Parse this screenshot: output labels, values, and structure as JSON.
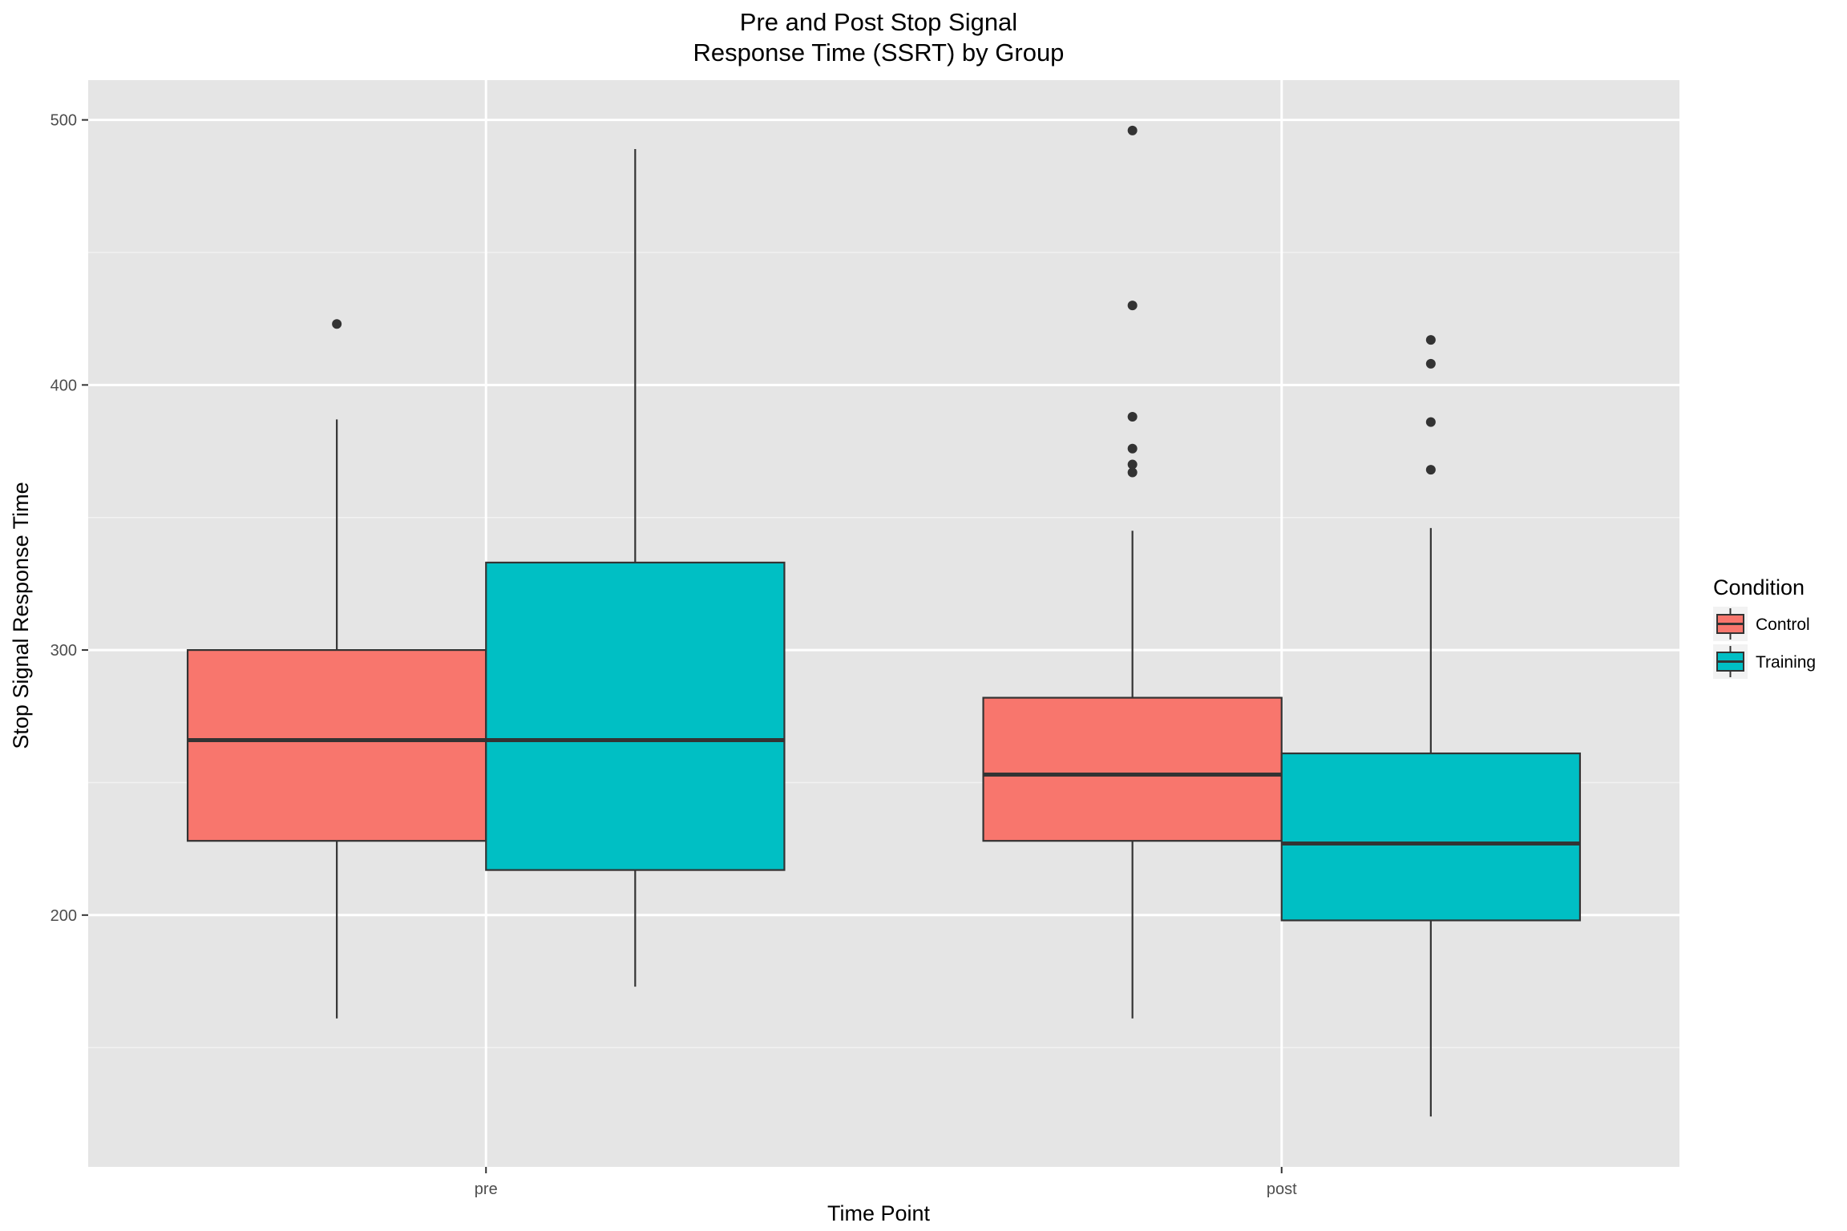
{
  "chart_data": {
    "type": "boxplot",
    "title_lines": [
      "Pre and Post Stop Signal",
      "Response Time (SSRT) by Group"
    ],
    "xlabel": "Time Point",
    "ylabel": "Stop Signal Response Time",
    "categories": [
      "pre",
      "post"
    ],
    "y_ticks": [
      200,
      300,
      400,
      500
    ],
    "ylim": [
      105,
      515
    ],
    "grid": true,
    "legend": {
      "title": "Condition",
      "position": "right",
      "entries": [
        {
          "name": "Control",
          "color": "#F8766D"
        },
        {
          "name": "Training",
          "color": "#00BFC4"
        }
      ]
    },
    "series": [
      {
        "name": "Control",
        "color": "#F8766D",
        "boxes": [
          {
            "category": "pre",
            "whisker_low": 161,
            "q1": 228,
            "median": 266,
            "q3": 300,
            "whisker_high": 387,
            "outliers": [
              423
            ]
          },
          {
            "category": "post",
            "whisker_low": 161,
            "q1": 228,
            "median": 253,
            "q3": 282,
            "whisker_high": 345,
            "outliers": [
              367,
              370,
              376,
              388,
              430,
              496
            ]
          }
        ]
      },
      {
        "name": "Training",
        "color": "#00BFC4",
        "boxes": [
          {
            "category": "pre",
            "whisker_low": 173,
            "q1": 217,
            "median": 266,
            "q3": 333,
            "whisker_high": 489,
            "outliers": []
          },
          {
            "category": "post",
            "whisker_low": 124,
            "q1": 198,
            "median": 227,
            "q3": 261,
            "whisker_high": 346,
            "outliers": [
              368,
              386,
              408,
              417
            ]
          }
        ]
      }
    ]
  }
}
